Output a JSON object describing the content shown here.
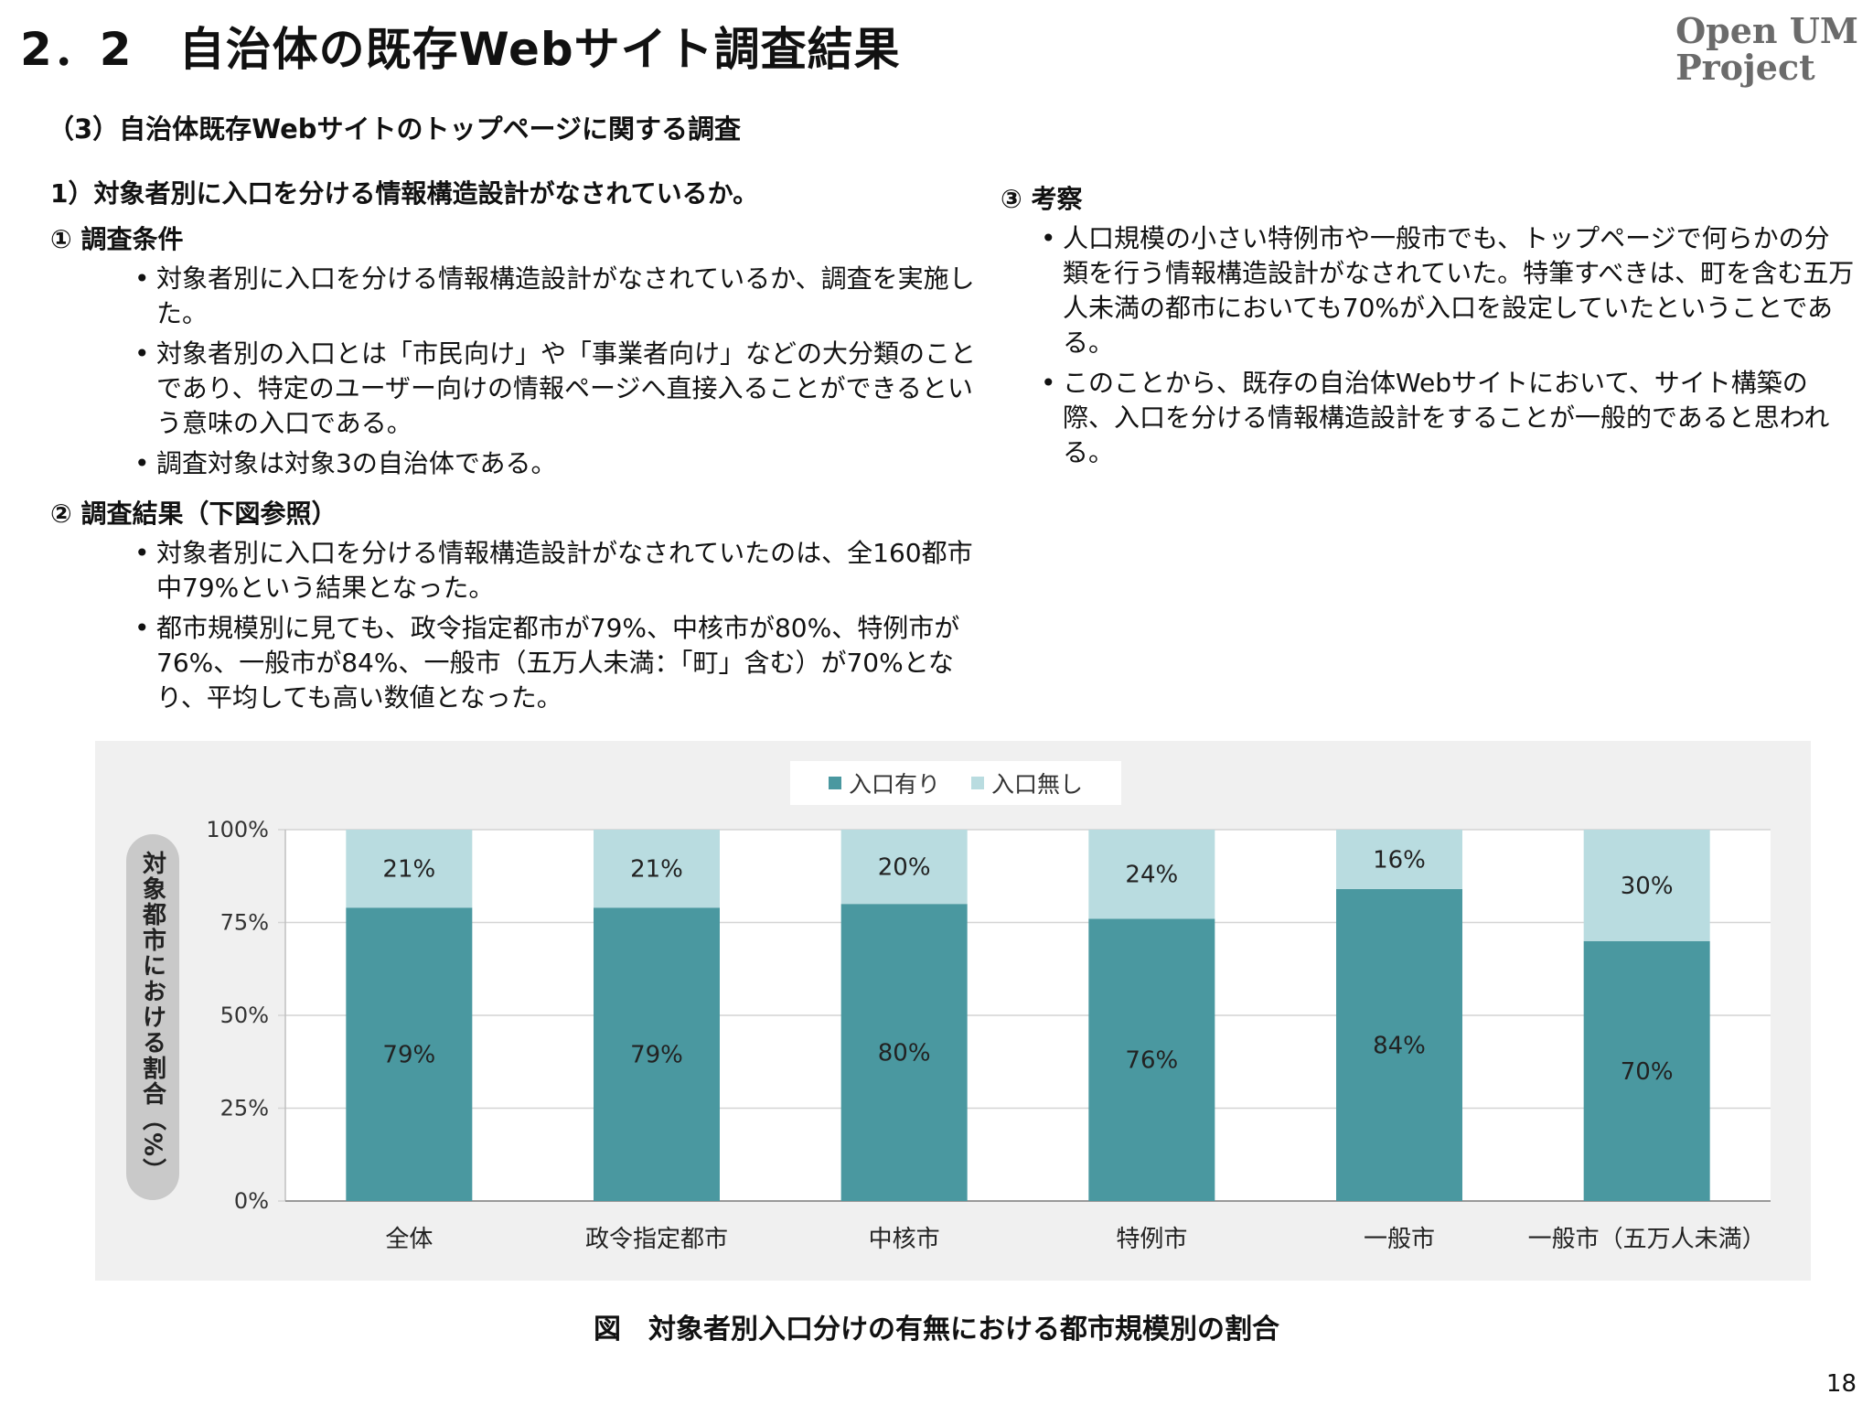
{
  "slide": {
    "title": "2．2　自治体の既存Webサイト調査結果",
    "logo_line1": "Open UM",
    "logo_line2": "Project",
    "subtitle": "（3）自治体既存Webサイトのトップページに関する調査",
    "page_number": "18"
  },
  "left": {
    "question": "1）対象者別に入口を分ける情報構造設計がなされているか。",
    "section1_heading": "① 調査条件",
    "section1_bullets": [
      "対象者別に入口を分ける情報構造設計がなされているか、調査を実施した。",
      "対象者別の入口とは「市民向け」や「事業者向け」などの大分類のことであり、特定のユーザー向けの情報ページへ直接入ることができるという意味の入口である。",
      "調査対象は対象3の自治体である。"
    ],
    "section2_heading": "② 調査結果（下図参照）",
    "section2_bullets": [
      "対象者別に入口を分ける情報構造設計がなされていたのは、全160都市中79%という結果となった。",
      "都市規模別に見ても、政令指定都市が79%、中核市が80%、特例市が76%、一般市が84%、一般市（五万人未満：「町」含む）が70%となり、平均しても高い数値となった。"
    ]
  },
  "right": {
    "section3_heading": "③ 考察",
    "section3_bullets": [
      "人口規模の小さい特例市や一般市でも、トップページで何らかの分類を行う情報構造設計がなされていた。特筆すべきは、町を含む五万人未満の都市においても70%が入口を設定していたということである。",
      "このことから、既存の自治体Webサイトにおいて、サイト構築の際、入口を分ける情報構造設計をすることが一般的であると思われる。"
    ]
  },
  "chart_data": {
    "type": "bar",
    "stacked": true,
    "title": "",
    "xlabel": "",
    "ylabel": "対象都市における割合（%）",
    "ylim": [
      0,
      100
    ],
    "yticks": [
      "0%",
      "25%",
      "50%",
      "75%",
      "100%"
    ],
    "grid": true,
    "legend_position": "top-center",
    "categories": [
      "全体",
      "政令指定都市",
      "中核市",
      "特例市",
      "一般市",
      "一般市（五万人未満）"
    ],
    "series": [
      {
        "name": "入口有り",
        "values": [
          79,
          79,
          80,
          76,
          84,
          70
        ],
        "labels": [
          "79%",
          "79%",
          "80%",
          "76%",
          "84%",
          "70%"
        ],
        "color": "#4a98a0"
      },
      {
        "name": "入口無し",
        "values": [
          21,
          21,
          20,
          24,
          16,
          30
        ],
        "labels": [
          "21%",
          "21%",
          "20%",
          "24%",
          "16%",
          "30%"
        ],
        "color": "#b9dce0"
      }
    ]
  },
  "figure_caption": "図　対象者別入口分けの有無における都市規模別の割合"
}
